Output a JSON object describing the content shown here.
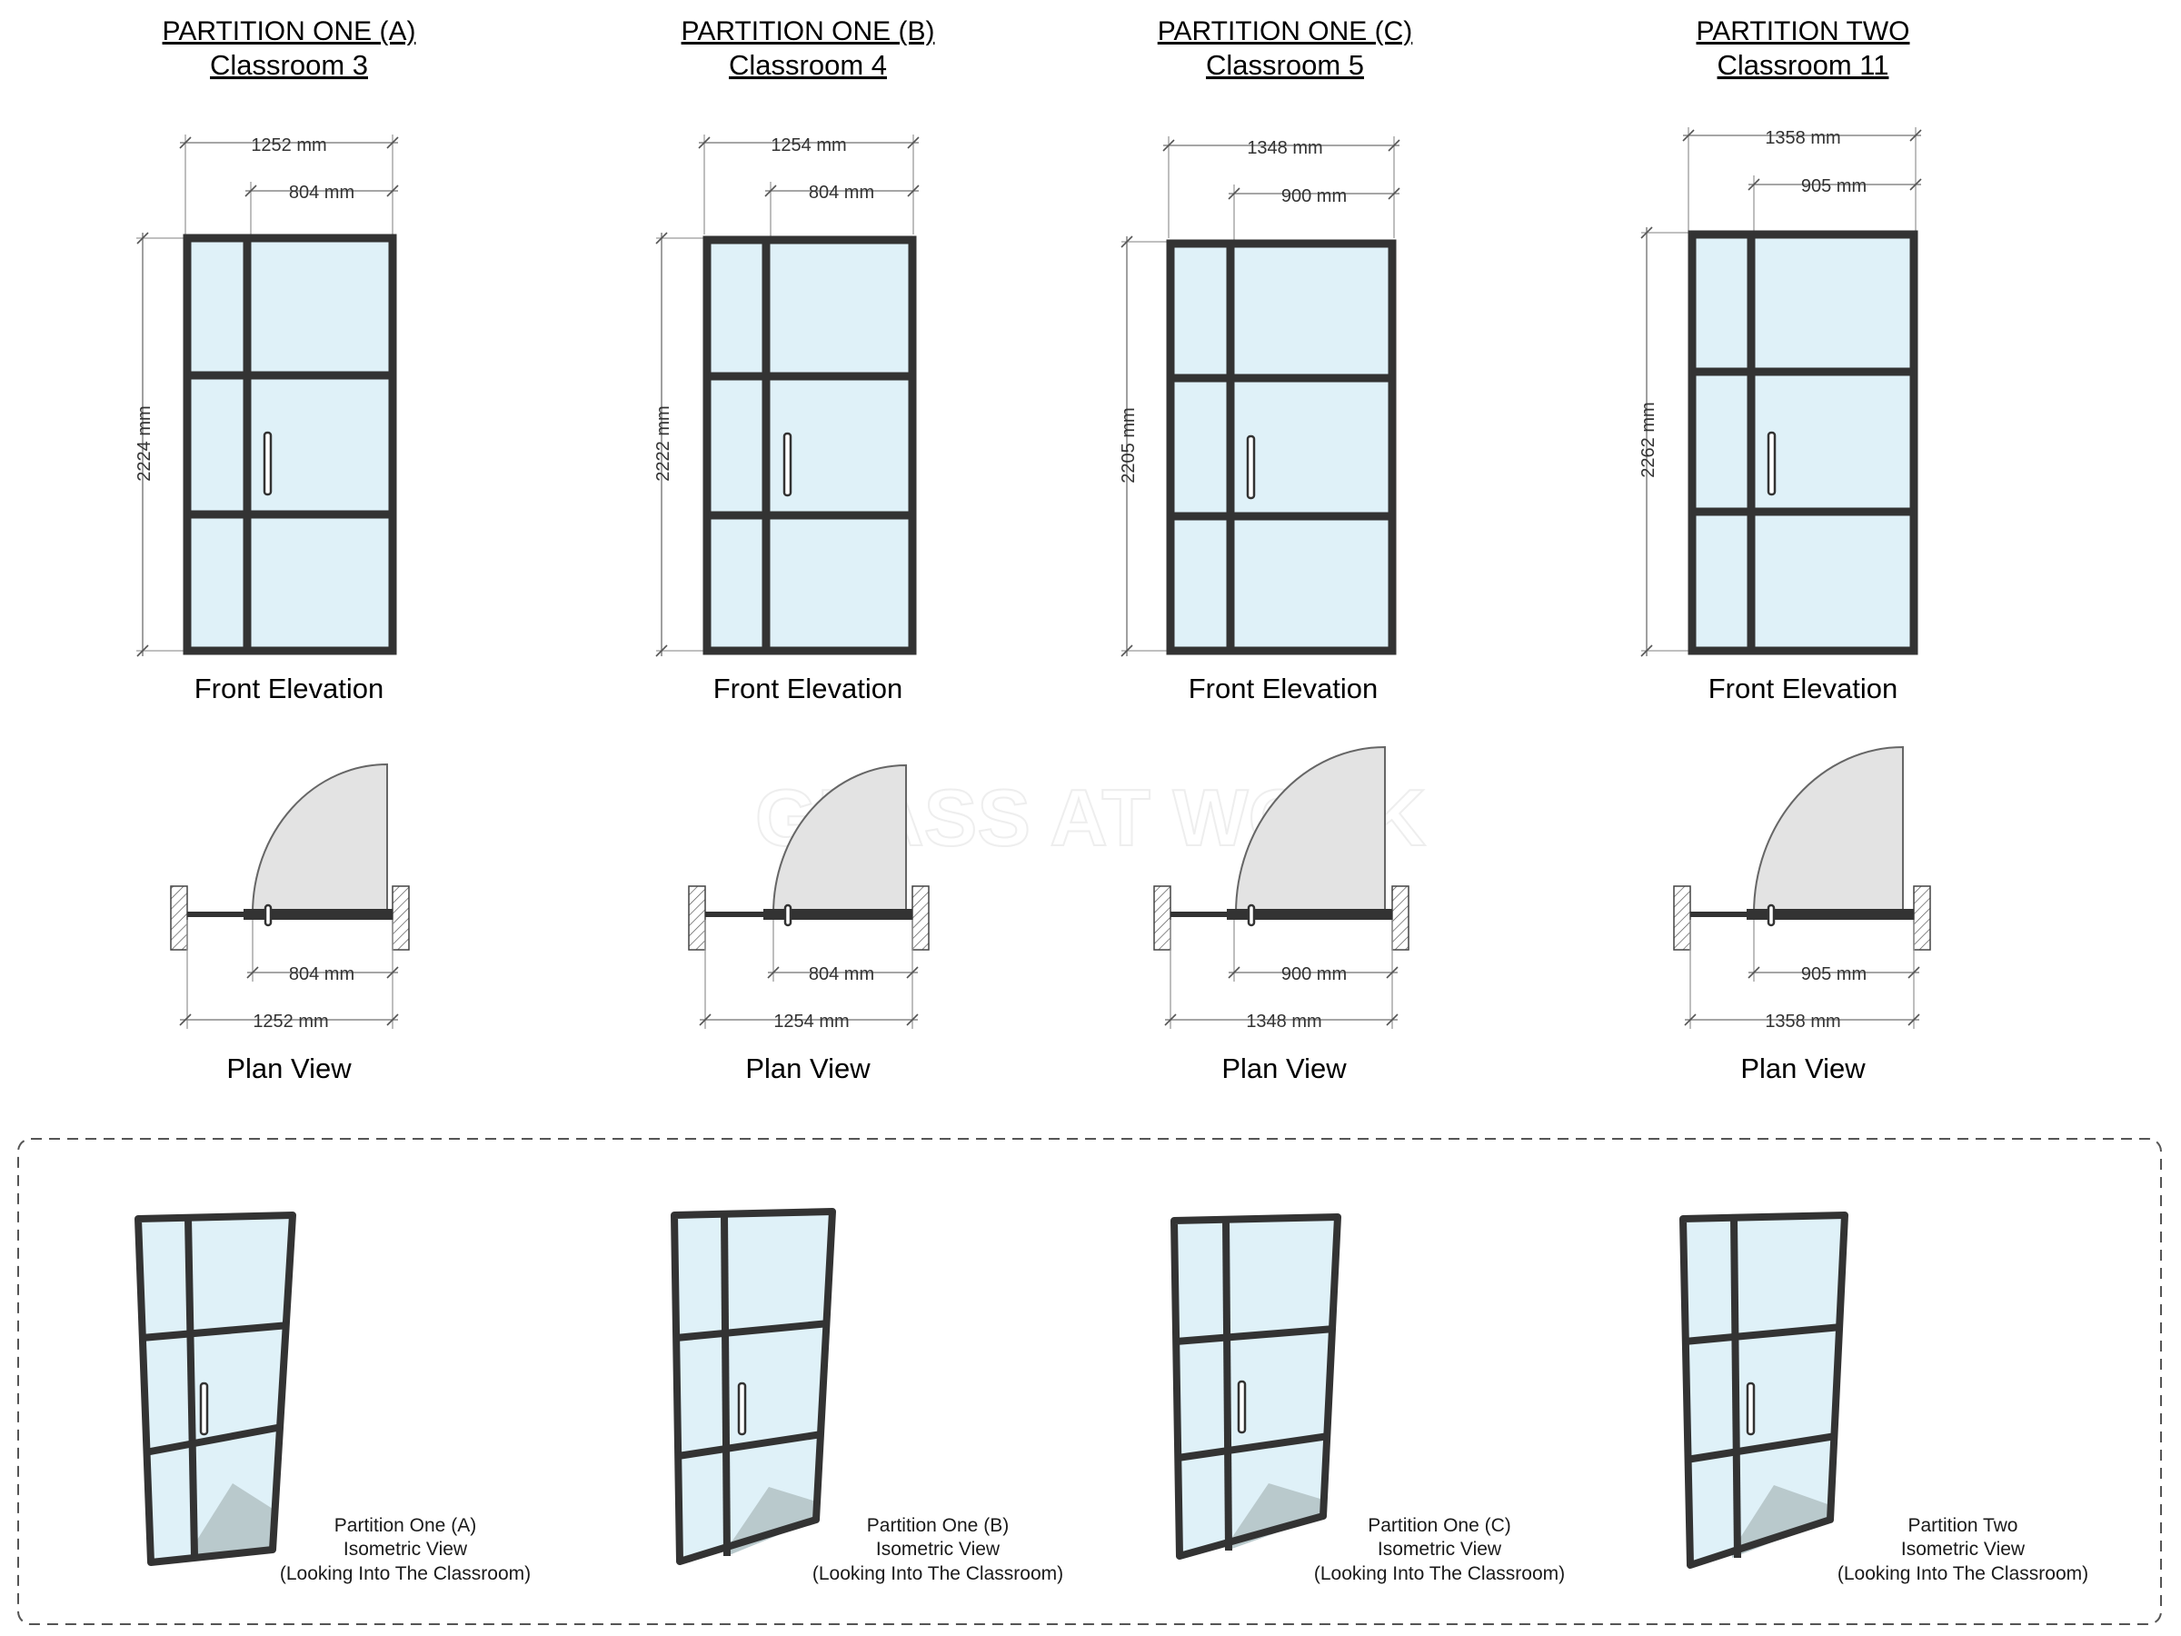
{
  "partitions": [
    {
      "title": "PARTITION ONE (A)",
      "room": "Classroom 3",
      "overall_width": "1252 mm",
      "door_width": "804 mm",
      "height": "2224 mm",
      "elevation_label": "Front Elevation",
      "plan_label": "Plan View",
      "iso_line1": "Partition One (A)",
      "iso_line2": "Isometric View",
      "iso_line3": "(Looking Into The Classroom)"
    },
    {
      "title": "PARTITION ONE (B)",
      "room": "Classroom 4",
      "overall_width": "1254 mm",
      "door_width": "804 mm",
      "height": "2222 mm",
      "elevation_label": "Front Elevation",
      "plan_label": "Plan View",
      "iso_line1": "Partition One (B)",
      "iso_line2": "Isometric View",
      "iso_line3": "(Looking Into The Classroom)"
    },
    {
      "title": "PARTITION ONE (C)",
      "room": "Classroom 5",
      "overall_width": "1348 mm",
      "door_width": "900 mm",
      "height": "2205 mm",
      "elevation_label": "Front Elevation",
      "plan_label": "Plan View",
      "iso_line1": "Partition One (C)",
      "iso_line2": "Isometric View",
      "iso_line3": "(Looking Into The Classroom)"
    },
    {
      "title": "PARTITION TWO",
      "room": "Classroom 11",
      "overall_width": "1358 mm",
      "door_width": "905 mm",
      "height": "2262 mm",
      "elevation_label": "Front Elevation",
      "plan_label": "Plan View",
      "iso_line1": "Partition Two",
      "iso_line2": "Isometric View",
      "iso_line3": "(Looking Into The Classroom)"
    }
  ],
  "watermark": "GLASS AT WORK",
  "colors": {
    "frame": "#333333",
    "glass": "#dff1f8",
    "swing": "#e3e3e3"
  }
}
